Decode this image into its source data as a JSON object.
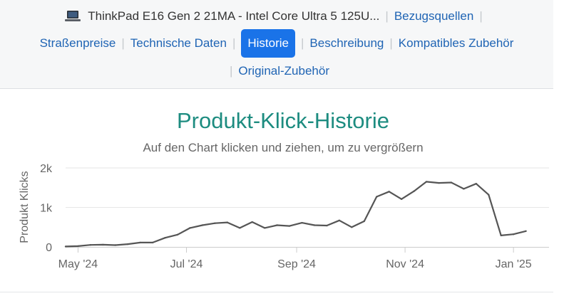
{
  "nav": {
    "product_title": "ThinkPad E16 Gen 2 21MA - Intel Core Ultra 5 125U...",
    "product_icon": "laptop-icon",
    "tabs": {
      "sources": "Bezugsquellen",
      "prices": "Straßenpreise",
      "specs": "Technische Daten",
      "history": "Historie",
      "description": "Beschreibung",
      "accessories": "Kompatibles Zubehör",
      "original_accessories": "Original-Zubehör"
    },
    "active_tab": "history",
    "colors": {
      "link": "#1f64b4",
      "active_bg": "#1a73e8"
    }
  },
  "chart_data": {
    "type": "line",
    "title": "Produkt-Klick-Historie",
    "subtitle": "Auf den Chart klicken und ziehen, um zu vergrößern",
    "ylabel": "Produkt Klicks",
    "xlabel": "",
    "ylim": [
      0,
      2000
    ],
    "yticks": [
      0,
      1000,
      2000
    ],
    "ytick_labels": [
      "0",
      "1k",
      "2k"
    ],
    "xlim": [
      "2024-04-24",
      "2025-01-21"
    ],
    "xticks": [
      "2024-05-01",
      "2024-07-01",
      "2024-09-01",
      "2024-11-01",
      "2025-01-01"
    ],
    "xtick_labels": [
      "May '24",
      "Jul '24",
      "Sep '24",
      "Nov '24",
      "Jan '25"
    ],
    "grid": true,
    "legend": false,
    "series": [
      {
        "color": "#555555",
        "points": [
          [
            "2024-04-24",
            10
          ],
          [
            "2024-05-01",
            20
          ],
          [
            "2024-05-08",
            50
          ],
          [
            "2024-05-15",
            55
          ],
          [
            "2024-05-22",
            45
          ],
          [
            "2024-05-29",
            70
          ],
          [
            "2024-06-05",
            110
          ],
          [
            "2024-06-12",
            110
          ],
          [
            "2024-06-19",
            230
          ],
          [
            "2024-06-26",
            310
          ],
          [
            "2024-07-03",
            480
          ],
          [
            "2024-07-10",
            550
          ],
          [
            "2024-07-17",
            600
          ],
          [
            "2024-07-24",
            620
          ],
          [
            "2024-07-31",
            480
          ],
          [
            "2024-08-07",
            630
          ],
          [
            "2024-08-14",
            480
          ],
          [
            "2024-08-21",
            550
          ],
          [
            "2024-08-28",
            530
          ],
          [
            "2024-09-04",
            610
          ],
          [
            "2024-09-11",
            550
          ],
          [
            "2024-09-18",
            540
          ],
          [
            "2024-09-25",
            670
          ],
          [
            "2024-10-02",
            500
          ],
          [
            "2024-10-09",
            650
          ],
          [
            "2024-10-16",
            1270
          ],
          [
            "2024-10-23",
            1400
          ],
          [
            "2024-10-30",
            1210
          ],
          [
            "2024-11-06",
            1410
          ],
          [
            "2024-11-13",
            1650
          ],
          [
            "2024-11-20",
            1620
          ],
          [
            "2024-11-27",
            1630
          ],
          [
            "2024-12-04",
            1470
          ],
          [
            "2024-12-11",
            1600
          ],
          [
            "2024-12-18",
            1320
          ],
          [
            "2024-12-25",
            290
          ],
          [
            "2025-01-01",
            320
          ],
          [
            "2025-01-08",
            400
          ]
        ]
      }
    ],
    "colors": {
      "title": "#1d8c80",
      "line": "#555555",
      "grid": "#e6e6e6",
      "axis_text": "#666666"
    }
  }
}
